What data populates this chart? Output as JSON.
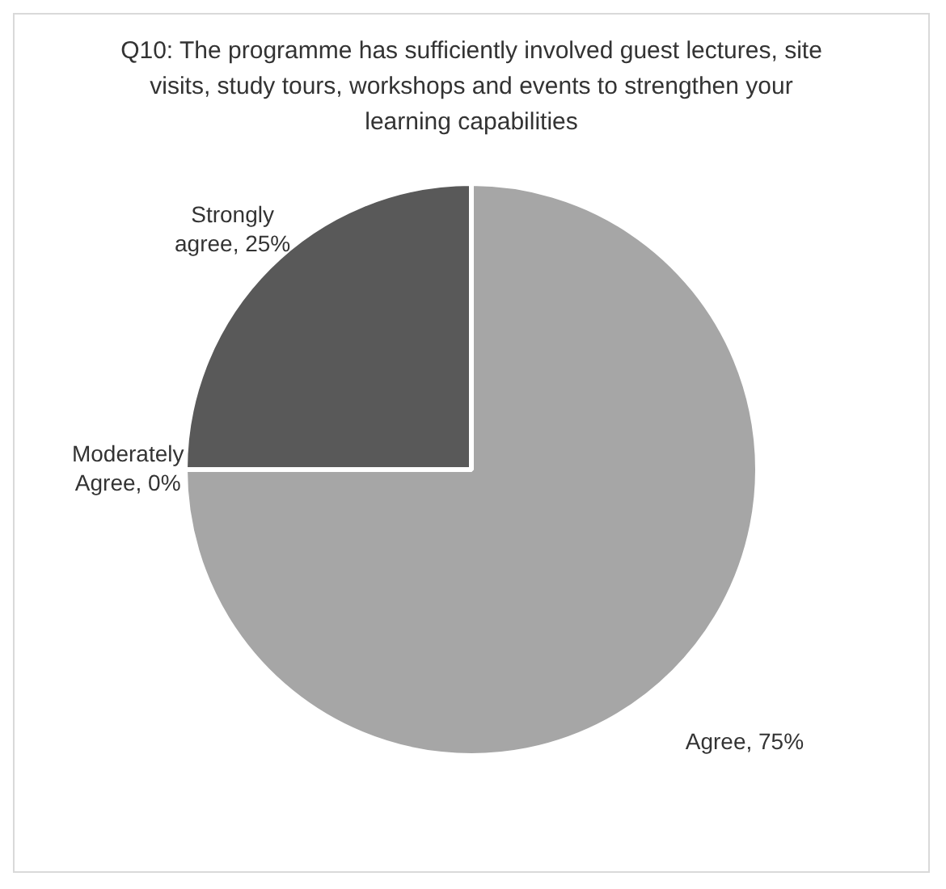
{
  "chart_data": {
    "type": "pie",
    "title": "Q10: The programme has sufficiently involved guest lectures, site visits, study tours, workshops and events to strengthen your learning capabilities",
    "categories": [
      "Agree",
      "Moderately Agree",
      "Strongly agree"
    ],
    "values": [
      75,
      0,
      25
    ],
    "colors": [
      "#a6a6a6",
      "#d0d0d0",
      "#595959"
    ],
    "value_labels": [
      ", 75%",
      ", 0%",
      ", 25%"
    ]
  }
}
